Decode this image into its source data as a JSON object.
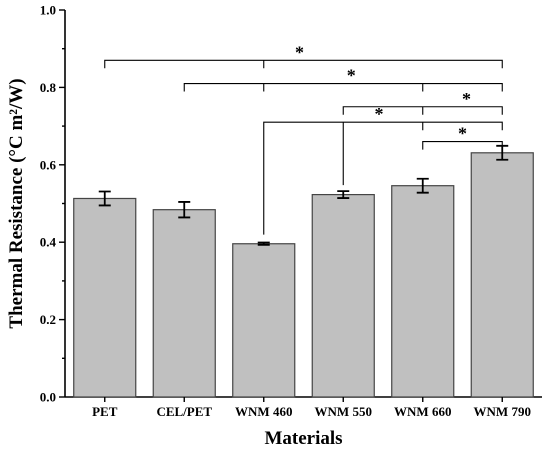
{
  "chart_data": {
    "type": "bar",
    "categories": [
      "PET",
      "CEL/PET",
      "WNM 460",
      "WNM 550",
      "WNM 660",
      "WNM 790"
    ],
    "values": [
      0.513,
      0.484,
      0.396,
      0.523,
      0.546,
      0.631
    ],
    "errors": [
      0.018,
      0.02,
      0.003,
      0.009,
      0.018,
      0.018
    ],
    "xlabel": "Materials",
    "ylabel": "Thermal Resistance (°C m²/W)",
    "ylim": [
      0.0,
      1.0
    ],
    "yticks": [
      "0.0",
      "0.2",
      "0.4",
      "0.6",
      "0.8",
      "1.0"
    ],
    "grid": false,
    "bar_color": "#c0c0c0",
    "significance": [
      {
        "from": "PET",
        "to": "WNM 790",
        "mid": "WNM 460",
        "y": 0.87,
        "label": "*"
      },
      {
        "from": "CEL/PET",
        "to": "WNM 790",
        "mid": [
          "WNM 460",
          "WNM 660"
        ],
        "y": 0.81,
        "label": "*"
      },
      {
        "from": "WNM 550",
        "to": "WNM 790",
        "mid": "WNM 660",
        "y": 0.75,
        "label": "*"
      },
      {
        "from": "WNM 460",
        "to": "WNM 790",
        "mid": [
          "WNM 550",
          "WNM 660"
        ],
        "y": 0.71,
        "label": "*"
      },
      {
        "from": "WNM 660",
        "to": "WNM 790",
        "y": 0.66,
        "label": "*"
      }
    ]
  }
}
